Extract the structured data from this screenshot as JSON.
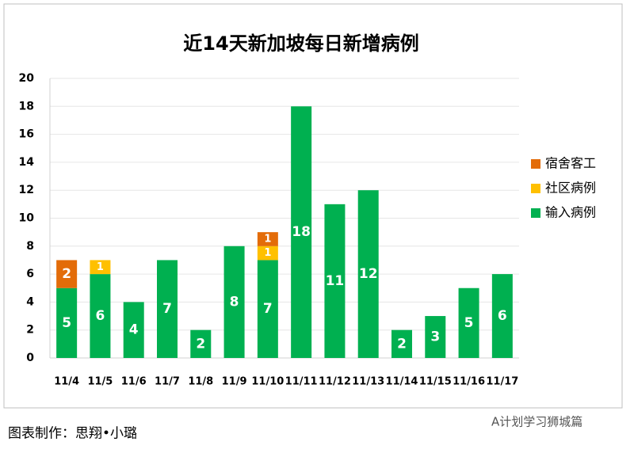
{
  "chart_data": {
    "type": "stacked_bar",
    "title": "近14天新加坡每日新增病例",
    "categories": [
      "11/4",
      "11/5",
      "11/6",
      "11/7",
      "11/8",
      "11/9",
      "11/10",
      "11/11",
      "11/12",
      "11/13",
      "11/14",
      "11/15",
      "11/16",
      "11/17"
    ],
    "series": [
      {
        "name": "输入病例",
        "color": "#00b050",
        "values": [
          5,
          6,
          4,
          7,
          2,
          8,
          7,
          18,
          11,
          12,
          2,
          3,
          5,
          6
        ]
      },
      {
        "name": "社区病例",
        "color": "#ffc000",
        "values": [
          null,
          1,
          null,
          null,
          null,
          null,
          1,
          null,
          null,
          null,
          null,
          null,
          null,
          null
        ]
      },
      {
        "name": "宿舍客工",
        "color": "#e36c09",
        "values": [
          2,
          null,
          null,
          null,
          null,
          null,
          1,
          null,
          null,
          null,
          null,
          null,
          null,
          null
        ]
      }
    ],
    "ylim": [
      0,
      20
    ],
    "yticks": [
      0,
      2,
      4,
      6,
      8,
      10,
      12,
      14,
      16,
      18,
      20
    ],
    "grid": true,
    "legend": "right"
  },
  "footer": "图表制作：思翔•小璐",
  "watermark": "A计划学习狮城篇"
}
